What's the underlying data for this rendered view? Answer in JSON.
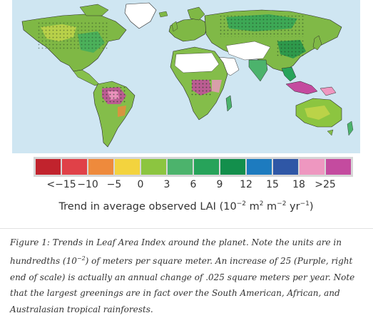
{
  "legend": {
    "colors": [
      "#c1232d",
      "#e04148",
      "#ee8a3c",
      "#f3d33e",
      "#8cc540",
      "#4cb36c",
      "#27a35a",
      "#138f4c",
      "#1d7bbf",
      "#2f57a6",
      "#ee97c0",
      "#c44b9f"
    ],
    "tick_labels": [
      "<−15",
      "−10",
      "−5",
      "0",
      "3",
      "6",
      "9",
      "12",
      "15",
      "18",
      ">25"
    ],
    "caption": {
      "prefix": "Trend in average observed LAI (10",
      "exp1": "−2",
      "mid1": " m",
      "exp2": "2",
      "mid2": " m",
      "exp3": "−2",
      "mid3": " yr",
      "exp4": "−1",
      "suffix": ")"
    }
  },
  "map": {
    "ocean_color": "#cfe6f2",
    "land_color": "#84bd4a",
    "no_data_color": "#ffffff"
  },
  "figure_caption": {
    "part1": "Figure 1: Trends in Leaf Area Index around the planet. Note the units are in hundredths (10",
    "exp": "−2",
    "part2": ") of meters per square meter. An increase of 25 (Purple, right end of scale) is actually an annual change of .025 square meters per year. Note that the largest greenings are in fact over the South American, African, and Australasian tropical rainforests."
  }
}
